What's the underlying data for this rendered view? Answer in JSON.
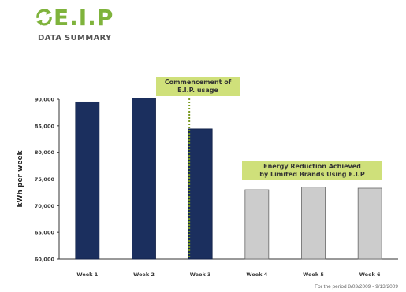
{
  "logo": {
    "text": "E.I.P",
    "subtitle": "DATA SUMMARY",
    "icon": "recycle-arrows-icon"
  },
  "chart_data": {
    "type": "bar",
    "categories": [
      "Week 1",
      "Week 2",
      "Week 3",
      "Week 4",
      "Week 5",
      "Week 6"
    ],
    "values": [
      89500,
      90200,
      84400,
      73000,
      73500,
      73300
    ],
    "bar_colors": [
      "#1b2f5e",
      "#1b2f5e",
      "#1b2f5e",
      "#cccccc",
      "#cccccc",
      "#cccccc"
    ],
    "ylabel": "kWh per week",
    "ylim": [
      60000,
      90000
    ],
    "yticks": [
      "60,000",
      "65,000",
      "70,000",
      "75,000",
      "80,000",
      "85,000",
      "90,000"
    ],
    "ytick_values": [
      60000,
      65000,
      70000,
      75000,
      80000,
      85000,
      90000
    ],
    "grid": false,
    "annotations": [
      {
        "text_lines": [
          "Commencement of",
          "E.I.P. usage"
        ],
        "marker_category": "Week 3"
      },
      {
        "text_lines": [
          "Energy Reduction Achieved",
          "by Limited Brands Using E.I.P"
        ]
      }
    ]
  },
  "footnote": "For the period 8/03/2009 - 9/13/2009"
}
